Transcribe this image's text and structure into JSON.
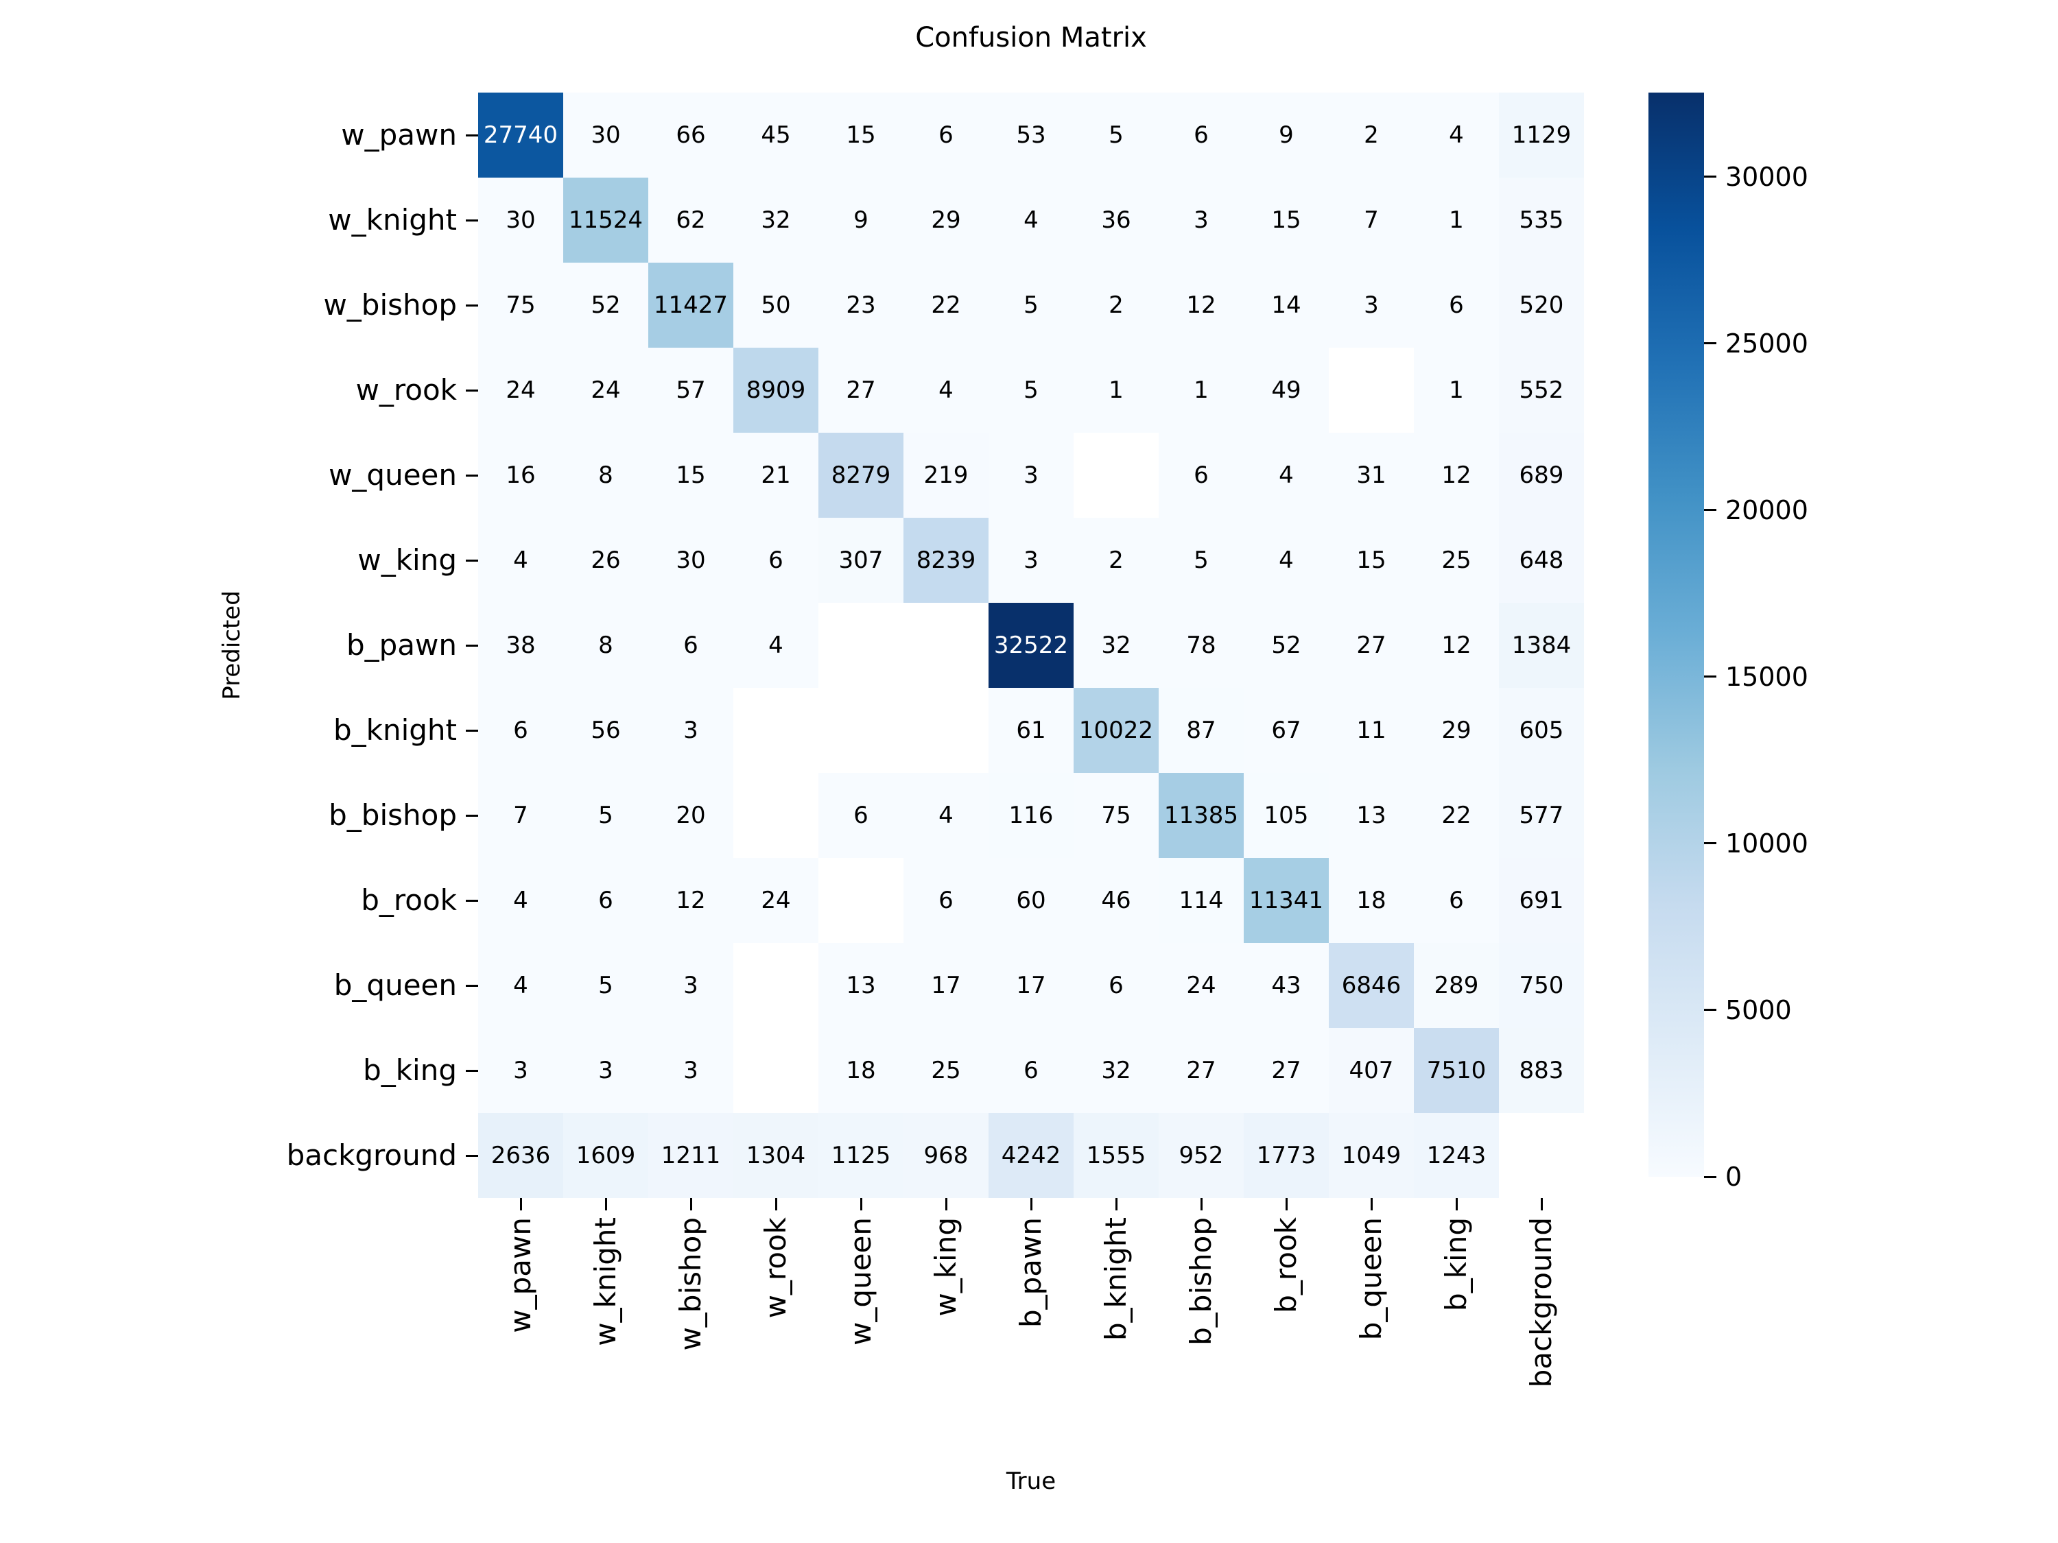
{
  "figure": {
    "title": "Confusion Matrix",
    "xlabel": "True",
    "ylabel": "Predicted"
  },
  "chart_data": {
    "type": "heatmap",
    "title": "Confusion Matrix",
    "xlabel": "True",
    "ylabel": "Predicted",
    "colormap": "Blues",
    "vmin": 0,
    "vmax": 32522,
    "grid": false,
    "legend_position": "right-colorbar",
    "colorbar_ticks": [
      0,
      5000,
      10000,
      15000,
      20000,
      25000,
      30000
    ],
    "x_tick_labels": [
      "w_pawn",
      "w_knight",
      "w_bishop",
      "w_rook",
      "w_queen",
      "w_king",
      "b_pawn",
      "b_knight",
      "b_bishop",
      "b_rook",
      "b_queen",
      "b_king",
      "background"
    ],
    "y_tick_labels": [
      "w_pawn",
      "w_knight",
      "w_bishop",
      "w_rook",
      "w_queen",
      "w_king",
      "b_pawn",
      "b_knight",
      "b_bishop",
      "b_rook",
      "b_queen",
      "b_king",
      "background"
    ],
    "matrix": [
      [
        27740,
        30,
        66,
        45,
        15,
        6,
        53,
        5,
        6,
        9,
        2,
        4,
        1129
      ],
      [
        30,
        11524,
        62,
        32,
        9,
        29,
        4,
        36,
        3,
        15,
        7,
        1,
        535
      ],
      [
        75,
        52,
        11427,
        50,
        23,
        22,
        5,
        2,
        12,
        14,
        3,
        6,
        520
      ],
      [
        24,
        24,
        57,
        8909,
        27,
        4,
        5,
        1,
        1,
        49,
        null,
        1,
        552
      ],
      [
        16,
        8,
        15,
        21,
        8279,
        219,
        3,
        null,
        6,
        4,
        31,
        12,
        689
      ],
      [
        4,
        26,
        30,
        6,
        307,
        8239,
        3,
        2,
        5,
        4,
        15,
        25,
        648
      ],
      [
        38,
        8,
        6,
        4,
        null,
        null,
        32522,
        32,
        78,
        52,
        27,
        12,
        1384
      ],
      [
        6,
        56,
        3,
        null,
        null,
        null,
        61,
        10022,
        87,
        67,
        11,
        29,
        605
      ],
      [
        7,
        5,
        20,
        null,
        6,
        4,
        116,
        75,
        11385,
        105,
        13,
        22,
        577
      ],
      [
        4,
        6,
        12,
        24,
        null,
        6,
        60,
        46,
        114,
        11341,
        18,
        6,
        691
      ],
      [
        4,
        5,
        3,
        null,
        13,
        17,
        17,
        6,
        24,
        43,
        6846,
        289,
        750
      ],
      [
        3,
        3,
        3,
        null,
        18,
        25,
        6,
        32,
        27,
        27,
        407,
        7510,
        883
      ],
      [
        2636,
        1609,
        1211,
        1304,
        1125,
        968,
        4242,
        1555,
        952,
        1773,
        1049,
        1243,
        null
      ]
    ],
    "blank_cells_rendered": "white"
  },
  "colors": {
    "page_background": "#ffffff",
    "text": "#000000",
    "cell_text_light": "#ffffff",
    "cmap_stops": [
      "#f7fbff",
      "#deebf7",
      "#c6dbef",
      "#9ecae1",
      "#6baed6",
      "#4292c6",
      "#2171b5",
      "#08519c",
      "#08306b"
    ]
  }
}
